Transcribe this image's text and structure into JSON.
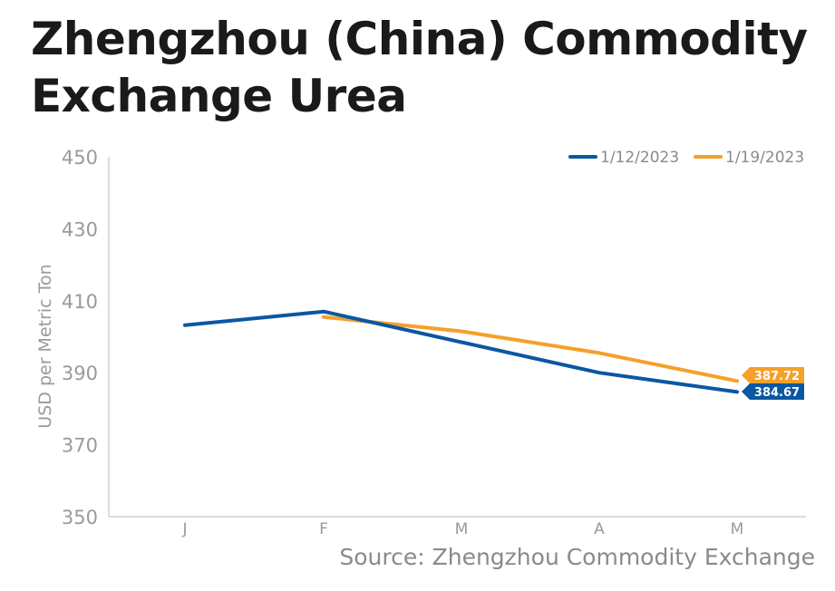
{
  "chart_data": {
    "type": "line",
    "title": "Zhengzhou (China) Commodity Exchange Urea",
    "ylabel": "USD per Metric Ton",
    "xlabel": "",
    "ylim": [
      350,
      450
    ],
    "yticks": [
      350,
      370,
      390,
      410,
      430,
      450
    ],
    "categories": [
      "J",
      "F",
      "M",
      "A",
      "M"
    ],
    "grid": false,
    "legend_position": "top-right",
    "series": [
      {
        "name": "1/12/2023",
        "color": "#0a57a3",
        "values": [
          403.2,
          407.0,
          398.5,
          390.0,
          384.67
        ],
        "end_label": "384.67"
      },
      {
        "name": "1/19/2023",
        "color": "#f5a02a",
        "values": [
          null,
          405.5,
          401.5,
          395.5,
          387.72
        ],
        "end_label": "387.72"
      }
    ],
    "source": "Source: Zhengzhou Commodity Exchange"
  }
}
